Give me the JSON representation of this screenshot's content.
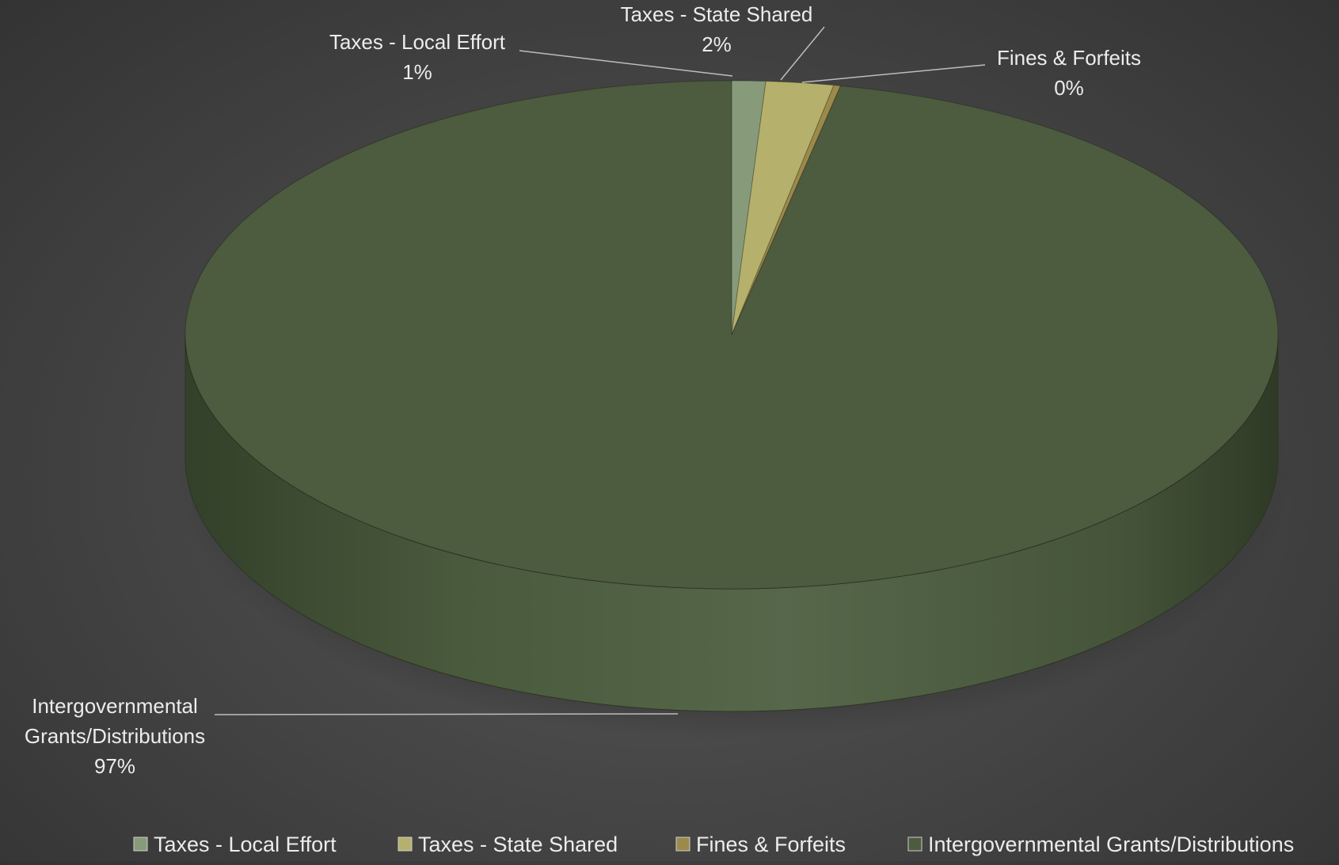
{
  "chart_data": {
    "type": "pie",
    "style": "3d",
    "title": "",
    "categories": [
      "Taxes - Local Effort",
      "Taxes - State Shared",
      "Fines & Forfeits",
      "Intergovernmental Grants/Distributions"
    ],
    "values": [
      1,
      2,
      0,
      97
    ],
    "percent_labels": [
      "1%",
      "2%",
      "0%",
      "97%"
    ],
    "colors": [
      "#879a7a",
      "#b5b06b",
      "#9c8a4b",
      "#4d5b3e"
    ],
    "legend_position": "bottom",
    "data_labels": [
      {
        "lines": [
          "Taxes - Local Effort",
          "1%"
        ]
      },
      {
        "lines": [
          "Taxes - State Shared",
          "2%"
        ]
      },
      {
        "lines": [
          "Fines & Forfeits",
          "0%"
        ]
      },
      {
        "lines": [
          "Intergovernmental",
          "Grants/Distributions",
          "97%"
        ]
      }
    ]
  }
}
